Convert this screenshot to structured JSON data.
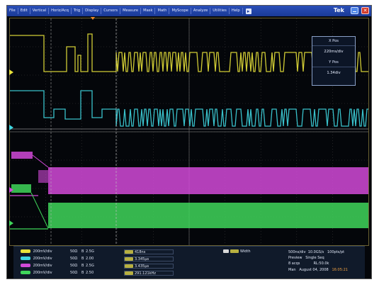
{
  "menubar": {
    "items": [
      "File",
      "Edit",
      "Vertical",
      "Horiz/Acq",
      "Trig",
      "Display",
      "Cursors",
      "Measure",
      "Mask",
      "Math",
      "MyScope",
      "Analyze",
      "Utilities",
      "Help"
    ],
    "brand": "Tek"
  },
  "position_panel": {
    "x_label": "X Pos",
    "x_value": "220ms/div",
    "y_label": "Y Pos",
    "y_value": "1.34div"
  },
  "channels": [
    {
      "color": "#e8e23a",
      "scale": "200mV/div",
      "coupling": "50Ω",
      "bw_symbol": "B",
      "bw": "2.5G"
    },
    {
      "color": "#3fd6e0",
      "scale": "200mV/div",
      "coupling": "50Ω",
      "bw_symbol": "B",
      "bw": "2.00"
    },
    {
      "color": "#d24ad8",
      "scale": "200mV/div",
      "coupling": "50Ω",
      "bw_symbol": "B",
      "bw": "2.5G"
    },
    {
      "color": "#3fd65a",
      "scale": "200mV/div",
      "coupling": "50Ω",
      "bw_symbol": "B",
      "bw": "2.50"
    }
  ],
  "measurements": [
    "418ns",
    "3.345µs",
    "3.435µs",
    "291.121kHz"
  ],
  "math_label": "Width",
  "acquisition": {
    "timebase": "500ns/div",
    "sample_rate": "10.0GS/s",
    "record": "100pts/pt",
    "mode": "Preview",
    "seq": "Single Seq",
    "acqs": "8 acqs",
    "rl": "RL:50.0k",
    "run": "Man",
    "date": "August 04, 2008",
    "time": "16:05:21"
  },
  "colors": {
    "yellow": "#e8e23a",
    "cyan": "#3fd6e0",
    "magenta": "#d24ad8",
    "green": "#3fd65a",
    "menu": "#1a3a96"
  }
}
